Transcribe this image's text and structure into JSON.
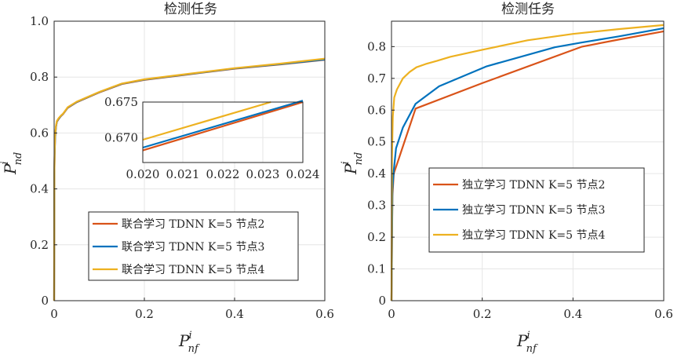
{
  "chart_data": [
    {
      "type": "line",
      "title": "检测任务",
      "xlabel": {
        "base": "P",
        "sub": "nf",
        "sup": "i"
      },
      "ylabel": {
        "base": "P",
        "sub": "nd",
        "sup": "i"
      },
      "xlim": [
        0,
        0.6
      ],
      "ylim": [
        0,
        1.0
      ],
      "xticks": [
        "0",
        "0.2",
        "0.4",
        "0.6"
      ],
      "yticks": [
        "0",
        "0.2",
        "0.4",
        "0.6",
        "0.8",
        "1.0"
      ],
      "grid": true,
      "legend_position": "bottom-right",
      "series": [
        {
          "name": "联合学习   TDNN K=5   节点2",
          "color": "#D95319",
          "x": [
            0,
            0.0005,
            0.001,
            0.002,
            0.004,
            0.006,
            0.01,
            0.015,
            0.02,
            0.03,
            0.05,
            0.1,
            0.15,
            0.2,
            0.3,
            0.4,
            0.5,
            0.6
          ],
          "y": [
            0,
            0.45,
            0.52,
            0.58,
            0.62,
            0.64,
            0.65,
            0.66,
            0.668,
            0.69,
            0.71,
            0.745,
            0.775,
            0.79,
            0.81,
            0.83,
            0.845,
            0.862
          ]
        },
        {
          "name": "联合学习   TDNN K=5   节点3",
          "color": "#0072BD",
          "x": [
            0,
            0.0005,
            0.001,
            0.002,
            0.004,
            0.006,
            0.01,
            0.015,
            0.02,
            0.03,
            0.05,
            0.1,
            0.15,
            0.2,
            0.3,
            0.4,
            0.5,
            0.6
          ],
          "y": [
            0,
            0.45,
            0.52,
            0.58,
            0.622,
            0.641,
            0.651,
            0.661,
            0.669,
            0.691,
            0.711,
            0.746,
            0.776,
            0.791,
            0.811,
            0.831,
            0.846,
            0.863
          ]
        },
        {
          "name": "联合学习   TDNN K=5   节点4",
          "color": "#EDB120",
          "x": [
            0,
            0.0005,
            0.001,
            0.002,
            0.004,
            0.006,
            0.01,
            0.015,
            0.02,
            0.03,
            0.05,
            0.1,
            0.15,
            0.2,
            0.3,
            0.4,
            0.5,
            0.6
          ],
          "y": [
            0,
            0.46,
            0.53,
            0.59,
            0.625,
            0.643,
            0.653,
            0.662,
            0.6695,
            0.692,
            0.712,
            0.747,
            0.777,
            0.792,
            0.812,
            0.832,
            0.848,
            0.866
          ]
        }
      ],
      "inset": {
        "xlim": [
          0.02,
          0.024
        ],
        "ylim": [
          0.6665,
          0.675
        ],
        "xticks": [
          "0.020",
          "0.021",
          "0.022",
          "0.023",
          "0.024"
        ],
        "yticks": [
          "0.670",
          "0.675"
        ],
        "series": [
          {
            "color": "#D95319",
            "x": [
              0.02,
              0.024
            ],
            "y": [
              0.6682,
              0.675
            ]
          },
          {
            "color": "#0072BD",
            "x": [
              0.02,
              0.024
            ],
            "y": [
              0.6686,
              0.6752
            ]
          },
          {
            "color": "#EDB120",
            "x": [
              0.02,
              0.0232
            ],
            "y": [
              0.6697,
              0.675
            ]
          }
        ]
      }
    },
    {
      "type": "line",
      "title": "检测任务",
      "xlabel": {
        "base": "P",
        "sub": "nf",
        "sup": "i"
      },
      "ylabel": {
        "base": "P",
        "sub": "nd",
        "sup": "i"
      },
      "xlim": [
        0,
        0.6
      ],
      "ylim": [
        0,
        0.88
      ],
      "xticks": [
        "0",
        "0.2",
        "0.4",
        "0.6"
      ],
      "yticks": [
        "0",
        "0.1",
        "0.2",
        "0.3",
        "0.4",
        "0.5",
        "0.6",
        "0.7",
        "0.8"
      ],
      "grid": true,
      "legend_position": "center-right",
      "series": [
        {
          "name": "独立学习   TDNN K=5   节点2",
          "color": "#D95319",
          "x": [
            0,
            0.002,
            0.005,
            0.053,
            0.2,
            0.42,
            0.5,
            0.6
          ],
          "y": [
            0,
            0.33,
            0.4,
            0.605,
            0.685,
            0.8,
            0.822,
            0.848
          ]
        },
        {
          "name": "独立学习   TDNN K=5   节点3",
          "color": "#0072BD",
          "x": [
            0,
            0.002,
            0.005,
            0.01,
            0.025,
            0.053,
            0.105,
            0.21,
            0.36,
            0.42,
            0.5,
            0.6
          ],
          "y": [
            0,
            0.35,
            0.41,
            0.48,
            0.545,
            0.62,
            0.675,
            0.738,
            0.798,
            0.813,
            0.832,
            0.858
          ]
        },
        {
          "name": "独立学习   TDNN K=5   节点4",
          "color": "#EDB120",
          "x": [
            0,
            0.001,
            0.003,
            0.006,
            0.012,
            0.025,
            0.04,
            0.055,
            0.075,
            0.1,
            0.13,
            0.2,
            0.3,
            0.4,
            0.5,
            0.6
          ],
          "y": [
            0,
            0.45,
            0.58,
            0.64,
            0.665,
            0.7,
            0.72,
            0.735,
            0.745,
            0.755,
            0.768,
            0.79,
            0.82,
            0.84,
            0.855,
            0.868
          ]
        }
      ]
    }
  ]
}
